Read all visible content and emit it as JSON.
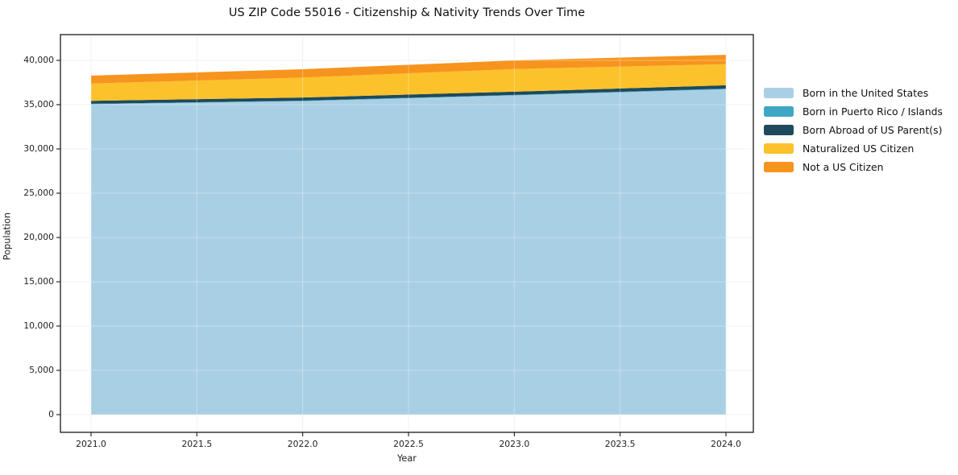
{
  "title": "US ZIP Code 55016 - Citizenship & Nativity Trends Over Time",
  "chart_data": {
    "type": "area",
    "stacked": true,
    "title": "US ZIP Code 55016 - Citizenship & Nativity Trends Over Time",
    "xlabel": "Year",
    "ylabel": "Population",
    "x": [
      2021,
      2022,
      2023,
      2024
    ],
    "series": [
      {
        "name": "Born in the United States",
        "color": "#a9cfe5",
        "values": [
          35050,
          35400,
          36050,
          36750
        ]
      },
      {
        "name": "Born in Puerto Rico / Islands",
        "color": "#3ea8c4",
        "values": [
          50,
          50,
          50,
          60
        ]
      },
      {
        "name": "Born Abroad of US Parent(s)",
        "color": "#1e4a5c",
        "values": [
          330,
          360,
          370,
          380
        ]
      },
      {
        "name": "Naturalized US Citizen",
        "color": "#fcc22c",
        "values": [
          1950,
          2250,
          2550,
          2380
        ]
      },
      {
        "name": "Not a US Citizen",
        "color": "#f7941e",
        "values": [
          900,
          940,
          980,
          1060
        ]
      }
    ],
    "totals": [
      38280,
      39000,
      40000,
      40630
    ],
    "xlim": [
      2020.85,
      2024.15
    ],
    "ylim": [
      -2030,
      42900
    ],
    "xtick_values": [
      2021.0,
      2021.5,
      2022.0,
      2022.5,
      2023.0,
      2023.5,
      2024.0
    ],
    "xtick_labels": [
      "2021.0",
      "2021.5",
      "2022.0",
      "2022.5",
      "2023.0",
      "2023.5",
      "2024.0"
    ],
    "ytick_values": [
      0,
      5000,
      10000,
      15000,
      20000,
      25000,
      30000,
      35000,
      40000
    ],
    "ytick_labels": [
      "0",
      "5,000",
      "10,000",
      "15,000",
      "20,000",
      "25,000",
      "30,000",
      "35,000",
      "40,000"
    ],
    "grid": true,
    "legend_position": "outside-right",
    "colors": {
      "background": "#ffffff",
      "plot_background": "#ffffff",
      "grid": "#ebebeb",
      "spine": "#1a1a1a",
      "text": "#1a1a1a"
    }
  }
}
